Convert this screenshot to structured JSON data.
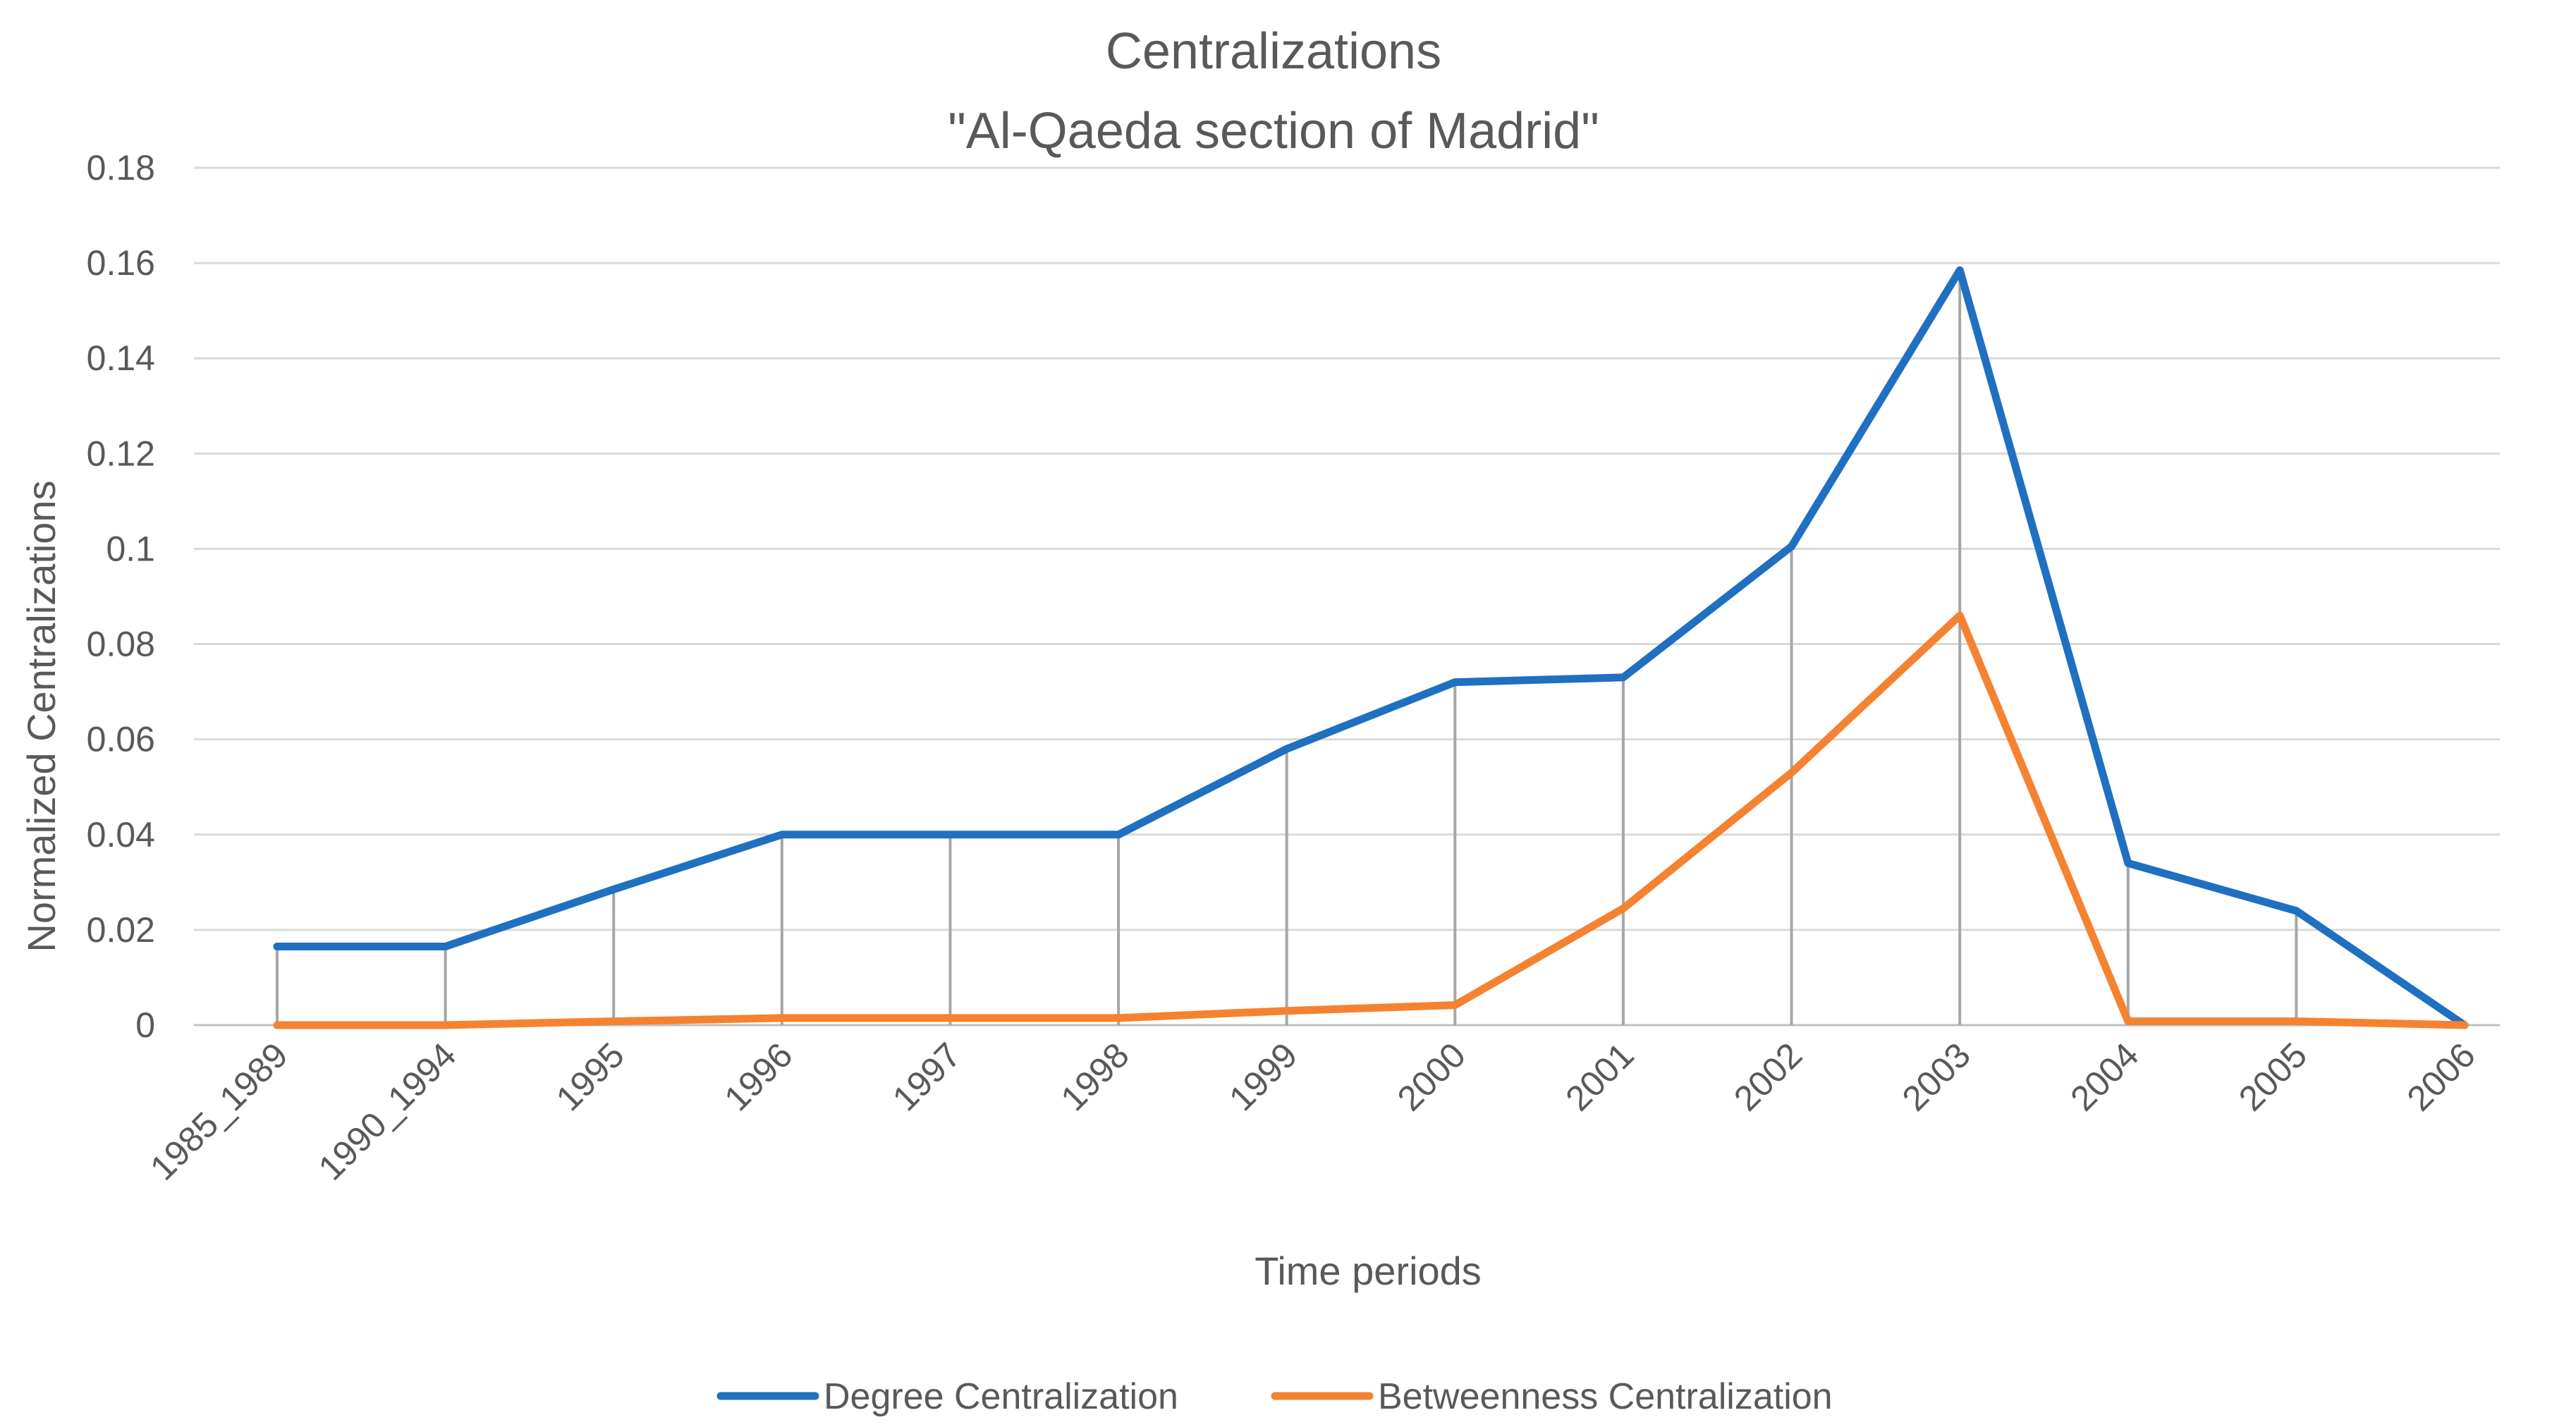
{
  "chart_data": {
    "type": "line",
    "title": "Centralizations",
    "subtitle": "\"Al-Qaeda section of Madrid\"",
    "xlabel": "Time periods",
    "ylabel": "Normalized Centralizations",
    "ylim": [
      0,
      0.18
    ],
    "yticks": [
      0,
      0.02,
      0.04,
      0.06,
      0.08,
      0.1,
      0.12,
      0.14,
      0.16,
      0.18
    ],
    "ytick_labels": [
      "0",
      "0.02",
      "0.04",
      "0.06",
      "0.08",
      "0.1",
      "0.12",
      "0.14",
      "0.16",
      "0.18"
    ],
    "grid": true,
    "drop_lines": true,
    "legend_position": "bottom",
    "categories": [
      "1985_1989",
      "1990_1994",
      "1995",
      "1996",
      "1997",
      "1998",
      "1999",
      "2000",
      "2001",
      "2002",
      "2003",
      "2004",
      "2005",
      "2006"
    ],
    "series": [
      {
        "name": "Degree Centralization",
        "color": "#1f70c1",
        "values": [
          0.0165,
          0.0165,
          0.0285,
          0.04,
          0.04,
          0.04,
          0.058,
          0.072,
          0.073,
          0.1005,
          0.1585,
          0.034,
          0.024,
          0.0
        ]
      },
      {
        "name": "Betweenness Centralization",
        "color": "#f58230",
        "values": [
          0.0,
          0.0,
          0.0008,
          0.0015,
          0.0015,
          0.0015,
          0.003,
          0.0042,
          0.0245,
          0.053,
          0.086,
          0.0008,
          0.0008,
          0.0
        ]
      }
    ]
  }
}
